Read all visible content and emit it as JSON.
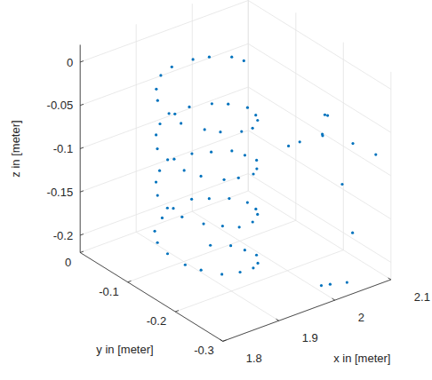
{
  "chart_data": {
    "type": "scatter3d",
    "xlabel": "x in [meter]",
    "ylabel": "y in [meter]",
    "zlabel": "z in [meter]",
    "xlim": [
      1.8,
      2.1
    ],
    "ylim": [
      -0.3,
      0
    ],
    "zlim": [
      -0.22,
      0.02
    ],
    "xticks": [
      1.8,
      1.9,
      2,
      2.1
    ],
    "yticks": [
      -0.3,
      -0.2,
      -0.1,
      0
    ],
    "zticks": [
      -0.2,
      -0.15,
      -0.1,
      -0.05,
      0
    ],
    "grid": true,
    "color": "#0072bd",
    "marker": "dot",
    "x": [
      1.958,
      1.956,
      1.937,
      1.919,
      1.888,
      1.865,
      1.84,
      1.827,
      1.821,
      1.823,
      1.843,
      1.861,
      1.892,
      1.915,
      1.941,
      1.953,
      1.962,
      1.953,
      1.94,
      1.915,
      1.891,
      1.861,
      1.843,
      1.824,
      1.822,
      1.826,
      1.839,
      1.865,
      1.889,
      1.919,
      1.937,
      1.957,
      1.959,
      1.957,
      1.938,
      1.918,
      1.893,
      1.862,
      1.842,
      1.826,
      1.819,
      1.824,
      1.842,
      1.864,
      1.887,
      1.916,
      1.94,
      1.954,
      1.961,
      1.954,
      1.936,
      1.92,
      1.889,
      1.864,
      1.838,
      1.825,
      1.821,
      1.827,
      1.84,
      1.862,
      1.891,
      1.918,
      1.938,
      1.956,
      1.958,
      1.955,
      1.939,
      2.02,
      2.05,
      2.055,
      2.09,
      2.03,
      2.08,
      2.1,
      2.04,
      2.07,
      2.09,
      2.0,
      2.03,
      1.98
    ],
    "y": [
      -0.158,
      -0.135,
      -0.11,
      -0.097,
      -0.089,
      -0.093,
      -0.113,
      -0.131,
      -0.162,
      -0.185,
      -0.211,
      -0.223,
      -0.231,
      -0.227,
      -0.207,
      -0.189,
      -0.161,
      -0.131,
      -0.112,
      -0.094,
      -0.092,
      -0.096,
      -0.109,
      -0.134,
      -0.158,
      -0.188,
      -0.208,
      -0.226,
      -0.228,
      -0.224,
      -0.21,
      -0.186,
      -0.159,
      -0.134,
      -0.113,
      -0.096,
      -0.088,
      -0.094,
      -0.11,
      -0.132,
      -0.161,
      -0.186,
      -0.21,
      -0.224,
      -0.232,
      -0.226,
      -0.208,
      -0.188,
      -0.162,
      -0.132,
      -0.111,
      -0.093,
      -0.091,
      -0.097,
      -0.112,
      -0.133,
      -0.159,
      -0.189,
      -0.207,
      -0.225,
      -0.229,
      -0.225,
      -0.211,
      -0.187,
      -0.16,
      -0.134,
      -0.11,
      -0.25,
      -0.22,
      -0.22,
      -0.28,
      -0.28,
      -0.18,
      -0.22,
      -0.29,
      -0.12,
      -0.12,
      -0.29,
      -0.29,
      -0.295
    ],
    "z": [
      0.018,
      0.015,
      0.011,
      0.008,
      0.004,
      0.001,
      -0.002,
      -0.006,
      -0.009,
      -0.013,
      -0.016,
      -0.019,
      -0.023,
      -0.026,
      -0.03,
      -0.033,
      -0.036,
      -0.04,
      -0.043,
      -0.047,
      -0.05,
      -0.053,
      -0.057,
      -0.06,
      -0.064,
      -0.067,
      -0.07,
      -0.074,
      -0.077,
      -0.081,
      -0.084,
      -0.087,
      -0.091,
      -0.094,
      -0.098,
      -0.101,
      -0.104,
      -0.108,
      -0.111,
      -0.115,
      -0.118,
      -0.121,
      -0.125,
      -0.128,
      -0.132,
      -0.135,
      -0.138,
      -0.142,
      -0.145,
      -0.149,
      -0.152,
      -0.155,
      -0.159,
      -0.162,
      -0.166,
      -0.169,
      -0.172,
      -0.176,
      -0.179,
      -0.183,
      -0.186,
      -0.189,
      -0.193,
      -0.196,
      -0.2,
      -0.203,
      -0.207,
      -0.05,
      -0.045,
      -0.047,
      -0.08,
      -0.1,
      -0.09,
      -0.09,
      -0.155,
      -0.12,
      -0.12,
      -0.205,
      -0.21,
      -0.2
    ]
  }
}
